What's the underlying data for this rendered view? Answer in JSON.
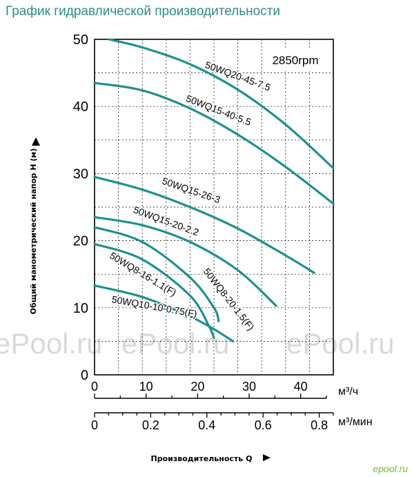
{
  "page_title": "График гидравлической производительности",
  "watermark_text": "ePool.ru",
  "site_logo": "epool.ru",
  "colors": {
    "curve": "#1f8f8f",
    "title": "#2d8d86",
    "axis": "#000000",
    "grid": "#000000"
  },
  "chart_data": {
    "type": "line",
    "title": "",
    "annotation": "2850rpm",
    "ylabel": "Общий манометрический напор Н (м)",
    "xlabel": "Производительность Q",
    "x_unit": "м³/ч",
    "x2_unit": "м³/мин",
    "xlim": [
      0,
      50
    ],
    "ylim": [
      0,
      50
    ],
    "x_ticks": [
      "0",
      "10",
      "20",
      "30",
      "40"
    ],
    "x2_ticks": [
      "0",
      "0.2",
      "0.4",
      "0.6",
      "0.8"
    ],
    "y_ticks": [
      "0",
      "10",
      "20",
      "30",
      "40",
      "50"
    ],
    "grid": true,
    "series": [
      {
        "name": "50WQ20-45-7.5",
        "x": [
          3,
          10,
          20,
          30,
          40,
          50
        ],
        "y": [
          50,
          48.8,
          46.3,
          42.5,
          37.3,
          30.8
        ]
      },
      {
        "name": "50WQ15-40-5.5",
        "x": [
          0,
          10,
          20,
          30,
          40,
          50
        ],
        "y": [
          43.5,
          42.4,
          39.7,
          35.8,
          31.0,
          25.5
        ]
      },
      {
        "name": "50WQ15-26-3",
        "x": [
          0,
          10,
          20,
          30,
          40,
          46
        ],
        "y": [
          29.5,
          27.6,
          25.0,
          21.8,
          17.8,
          15.2
        ]
      },
      {
        "name": "50WQ15-20-2.2",
        "x": [
          0,
          10,
          20,
          30,
          38
        ],
        "y": [
          23.5,
          22.3,
          19.8,
          15.6,
          10.3
        ]
      },
      {
        "name": "50WQ8-20-1.5(F)",
        "x": [
          0,
          10,
          20,
          25,
          26
        ],
        "y": [
          22.0,
          19.8,
          14.5,
          10.0,
          8.0
        ]
      },
      {
        "name": "50WQ8-16-1.1(F)",
        "x": [
          0,
          10,
          20,
          24,
          25
        ],
        "y": [
          19.5,
          17.2,
          11.8,
          7.2,
          5.5
        ]
      },
      {
        "name": "50WQ10-10-0.75(F)",
        "x": [
          0,
          10,
          20,
          25,
          29
        ],
        "y": [
          13.3,
          11.6,
          8.7,
          6.8,
          5.0
        ]
      }
    ],
    "curve_labels": [
      {
        "text": "50WQ20-45-7.5",
        "x": 23,
        "y": 45.8,
        "angle": 20
      },
      {
        "text": "50WQ15-40-5.5",
        "x": 19,
        "y": 40.8,
        "angle": 21
      },
      {
        "text": "50WQ15-26-3",
        "x": 14,
        "y": 28.5,
        "angle": 19
      },
      {
        "text": "50WQ15-20-2.2",
        "x": 8,
        "y": 24.2,
        "angle": 20
      },
      {
        "text": "50WQ8-16-1.1(F)",
        "x": 3,
        "y": 17.5,
        "angle": 31
      },
      {
        "text": "50WQ8-20-1.5(F)",
        "x": 22.7,
        "y": 15.4,
        "angle": 52
      },
      {
        "text": "50WQ10-10-0.75(F)",
        "x": 3.5,
        "y": 10.8,
        "angle": 10
      }
    ]
  }
}
